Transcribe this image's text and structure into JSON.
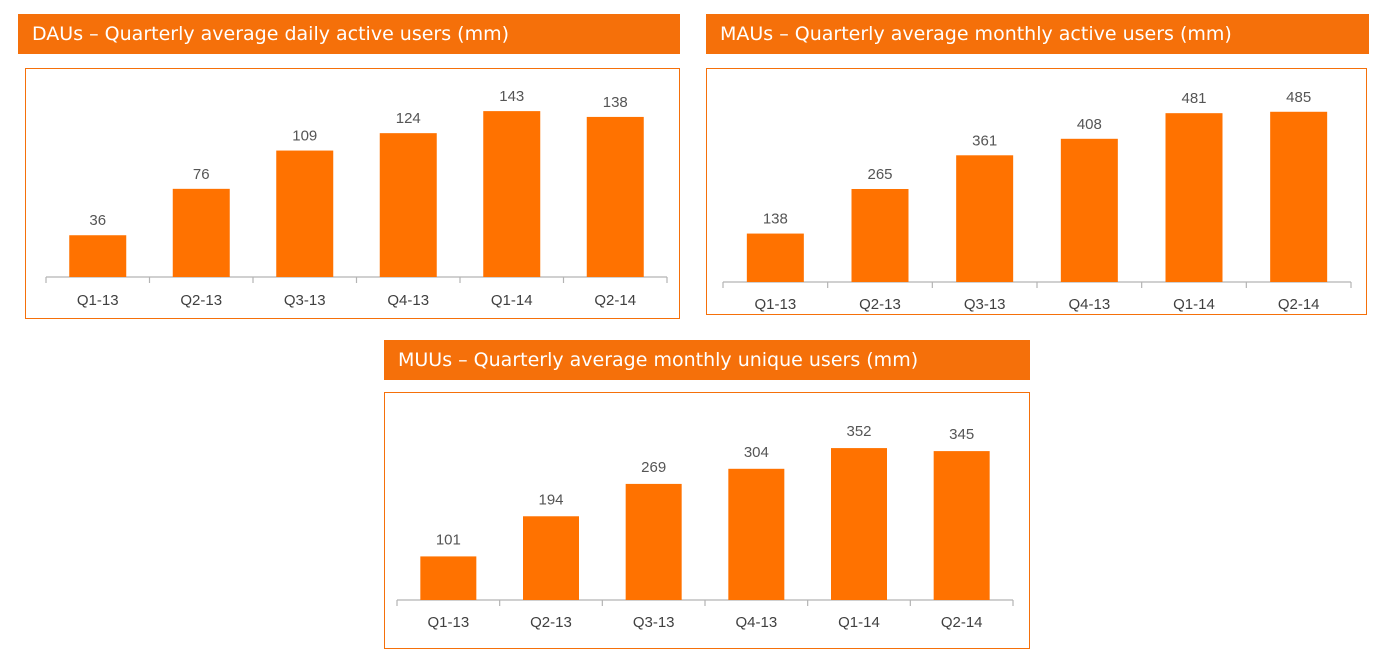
{
  "colors": {
    "accent": "#f5700a",
    "bar": "#ff7200",
    "axis": "#b4b4b4",
    "label": "#555555"
  },
  "chart_data": [
    {
      "id": "dau",
      "type": "bar",
      "title": "DAUs – Quarterly average daily active users (mm)",
      "categories": [
        "Q1-13",
        "Q2-13",
        "Q3-13",
        "Q4-13",
        "Q1-14",
        "Q2-14"
      ],
      "values": [
        36,
        76,
        109,
        124,
        143,
        138
      ],
      "xlabel": "",
      "ylabel": "",
      "ylim": [
        0,
        150
      ],
      "grid": false,
      "legend": "none",
      "data_labels": true
    },
    {
      "id": "mau",
      "type": "bar",
      "title": "MAUs – Quarterly average monthly active users (mm)",
      "categories": [
        "Q1-13",
        "Q2-13",
        "Q3-13",
        "Q4-13",
        "Q1-14",
        "Q2-14"
      ],
      "values": [
        138,
        265,
        361,
        408,
        481,
        485
      ],
      "xlabel": "",
      "ylabel": "",
      "ylim": [
        0,
        510
      ],
      "grid": false,
      "legend": "none",
      "data_labels": true
    },
    {
      "id": "muu",
      "type": "bar",
      "title": "MUUs – Quarterly average monthly unique users (mm)",
      "categories": [
        "Q1-13",
        "Q2-13",
        "Q3-13",
        "Q4-13",
        "Q1-14",
        "Q2-14"
      ],
      "values": [
        101,
        194,
        269,
        304,
        352,
        345
      ],
      "xlabel": "",
      "ylabel": "",
      "ylim": [
        0,
        380
      ],
      "grid": false,
      "legend": "none",
      "data_labels": true
    }
  ]
}
